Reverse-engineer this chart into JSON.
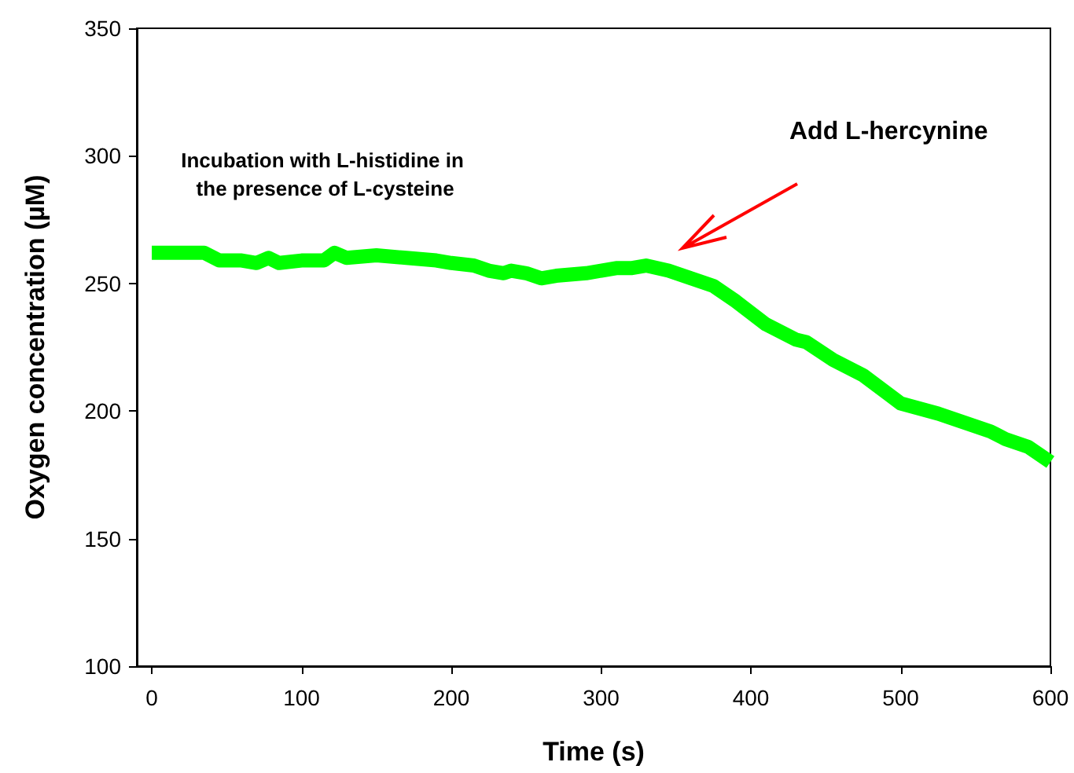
{
  "chart_data": {
    "type": "line",
    "xlabel": "Time (s)",
    "ylabel": "Oxygen concentration (µM)",
    "x": [
      0,
      35,
      45,
      60,
      70,
      78,
      85,
      100,
      115,
      122,
      130,
      150,
      170,
      190,
      200,
      215,
      225,
      235,
      240,
      250,
      260,
      270,
      290,
      300,
      310,
      320,
      330,
      345,
      360,
      375,
      390,
      410,
      430,
      437,
      455,
      475,
      500,
      525,
      545,
      560,
      570,
      585,
      600
    ],
    "series": [
      {
        "color": "#00ff00",
        "values": [
          262,
          262,
          259,
          259,
          258,
          260,
          258,
          259,
          259,
          262,
          260,
          261,
          260,
          259,
          258,
          257,
          255,
          254,
          255,
          254,
          252,
          253,
          254,
          255,
          256,
          256,
          257,
          255,
          252,
          249,
          243,
          234,
          228,
          227,
          220,
          214,
          203,
          199,
          195,
          192,
          189,
          186,
          180
        ]
      }
    ],
    "xlim": [
      -10,
      600
    ],
    "ylim": [
      100,
      350
    ],
    "xticks": [
      0,
      100,
      200,
      300,
      400,
      500,
      600
    ],
    "yticks": [
      100,
      150,
      200,
      250,
      300,
      350
    ],
    "grid": false,
    "marker": "none",
    "line_style": "solid",
    "annotations": [
      "Incubation with L-histidine in\n the presence of L-cysteine",
      "Add L-hercynine"
    ]
  }
}
